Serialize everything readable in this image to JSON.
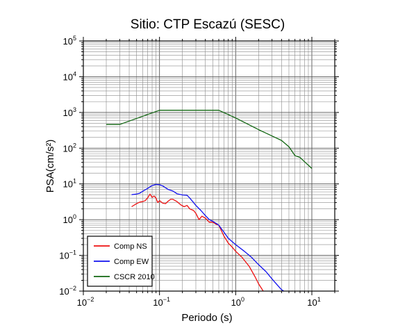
{
  "chart_data": {
    "type": "line",
    "title": "Sitio: CTP Escazú (SESC)",
    "xlabel": "Periodo (s)",
    "ylabel": "PSA(cm/s²)",
    "xscale": "log",
    "yscale": "log",
    "xlim": [
      0.01,
      20
    ],
    "ylim": [
      0.01,
      100000
    ],
    "grid": true,
    "legend_position": "bottom-left",
    "x_ticks": [
      {
        "value": 0.01,
        "base": "10",
        "exp": "−2"
      },
      {
        "value": 0.1,
        "base": "10",
        "exp": "−1"
      },
      {
        "value": 1,
        "base": "10",
        "exp": "0"
      },
      {
        "value": 10,
        "base": "10",
        "exp": "1"
      }
    ],
    "y_ticks": [
      {
        "value": 0.01,
        "base": "10",
        "exp": "−2"
      },
      {
        "value": 0.1,
        "base": "10",
        "exp": "−1"
      },
      {
        "value": 1,
        "base": "10",
        "exp": "0"
      },
      {
        "value": 10,
        "base": "10",
        "exp": "1"
      },
      {
        "value": 100,
        "base": "10",
        "exp": "2"
      },
      {
        "value": 1000,
        "base": "10",
        "exp": "3"
      },
      {
        "value": 10000,
        "base": "10",
        "exp": "4"
      },
      {
        "value": 100000,
        "base": "10",
        "exp": "5"
      }
    ],
    "series": [
      {
        "name": "Comp NS",
        "color": "#ee1111",
        "points": [
          [
            0.043,
            2.3
          ],
          [
            0.05,
            2.8
          ],
          [
            0.055,
            3.1
          ],
          [
            0.06,
            3.2
          ],
          [
            0.065,
            3.4
          ],
          [
            0.07,
            4.1
          ],
          [
            0.075,
            5.2
          ],
          [
            0.08,
            4.2
          ],
          [
            0.085,
            4.6
          ],
          [
            0.09,
            4.0
          ],
          [
            0.095,
            3.0
          ],
          [
            0.1,
            3.4
          ],
          [
            0.11,
            2.9
          ],
          [
            0.12,
            2.8
          ],
          [
            0.13,
            3.3
          ],
          [
            0.14,
            3.7
          ],
          [
            0.15,
            3.7
          ],
          [
            0.17,
            3.2
          ],
          [
            0.19,
            2.6
          ],
          [
            0.21,
            2.3
          ],
          [
            0.23,
            2.5
          ],
          [
            0.25,
            2.0
          ],
          [
            0.28,
            1.8
          ],
          [
            0.3,
            1.5
          ],
          [
            0.33,
            1.0
          ],
          [
            0.36,
            1.25
          ],
          [
            0.4,
            1.1
          ],
          [
            0.45,
            0.85
          ],
          [
            0.5,
            0.85
          ],
          [
            0.55,
            0.75
          ],
          [
            0.6,
            0.7
          ],
          [
            0.7,
            0.35
          ],
          [
            0.8,
            0.22
          ],
          [
            0.9,
            0.17
          ],
          [
            1.0,
            0.13
          ],
          [
            1.2,
            0.09
          ],
          [
            1.5,
            0.05
          ],
          [
            1.8,
            0.025
          ],
          [
            2.0,
            0.016
          ],
          [
            2.3,
            0.01
          ]
        ]
      },
      {
        "name": "Comp EW",
        "color": "#1111ee",
        "points": [
          [
            0.043,
            5.0
          ],
          [
            0.05,
            5.2
          ],
          [
            0.055,
            5.5
          ],
          [
            0.06,
            6.2
          ],
          [
            0.07,
            7.5
          ],
          [
            0.08,
            9.0
          ],
          [
            0.09,
            9.7
          ],
          [
            0.1,
            9.5
          ],
          [
            0.11,
            8.8
          ],
          [
            0.13,
            7.0
          ],
          [
            0.15,
            6.3
          ],
          [
            0.17,
            5.3
          ],
          [
            0.2,
            4.9
          ],
          [
            0.23,
            4.8
          ],
          [
            0.25,
            4.0
          ],
          [
            0.28,
            3.0
          ],
          [
            0.3,
            2.5
          ],
          [
            0.35,
            1.8
          ],
          [
            0.4,
            1.3
          ],
          [
            0.45,
            1.0
          ],
          [
            0.5,
            0.9
          ],
          [
            0.6,
            0.7
          ],
          [
            0.7,
            0.45
          ],
          [
            0.8,
            0.3
          ],
          [
            1.0,
            0.2
          ],
          [
            1.3,
            0.13
          ],
          [
            1.6,
            0.09
          ],
          [
            2.0,
            0.055
          ],
          [
            2.5,
            0.035
          ],
          [
            3.0,
            0.022
          ],
          [
            3.5,
            0.015
          ],
          [
            4.0,
            0.011
          ],
          [
            4.3,
            0.01
          ]
        ]
      },
      {
        "name": "CSCR 2010",
        "color": "#116611",
        "points": [
          [
            0.02,
            460
          ],
          [
            0.03,
            460
          ],
          [
            0.1,
            1150
          ],
          [
            0.6,
            1150
          ],
          [
            1.0,
            700
          ],
          [
            2.0,
            330
          ],
          [
            3.0,
            220
          ],
          [
            4.0,
            165
          ],
          [
            5.0,
            110
          ],
          [
            6.0,
            62
          ],
          [
            7.0,
            55
          ],
          [
            8.0,
            42
          ],
          [
            10.0,
            27
          ]
        ]
      }
    ]
  }
}
